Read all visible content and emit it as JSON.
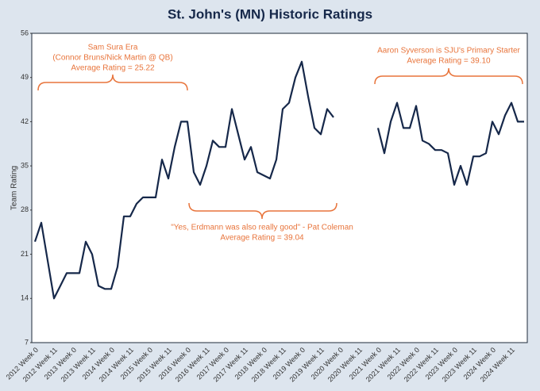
{
  "chart_data": {
    "type": "line",
    "title": "St. John's (MN) Historic Ratings",
    "y_label": "Team Rating",
    "categories": [
      "2012 Week 0",
      null,
      null,
      "2012 Week 11",
      null,
      null,
      "2013 Week 0",
      null,
      null,
      "2013 Week 11",
      null,
      null,
      "2014 Week 0",
      null,
      null,
      "2014 Week 11",
      null,
      null,
      "2015 Week 0",
      null,
      null,
      "2015 Week 11",
      null,
      null,
      "2016 Week 0",
      null,
      null,
      "2016 Week 11",
      null,
      null,
      "2017 Week 0",
      null,
      null,
      "2017 Week 11",
      null,
      null,
      "2018 Week 0",
      null,
      null,
      "2018 Week 11",
      null,
      null,
      "2019 Week 0",
      null,
      null,
      "2019 Week 11",
      null,
      null,
      "2020 Week 0",
      null,
      null,
      "2020 Week 11",
      null,
      null,
      "2021 Week 0",
      null,
      null,
      "2021 Week 11",
      null,
      null,
      "2022 Week 0",
      null,
      null,
      "2022 Week 11",
      null,
      null,
      "2023 Week 0",
      null,
      null,
      "2023 Week 11",
      null,
      null,
      "2024 Week 0",
      null,
      null,
      "2024 Week 11",
      null,
      null
    ],
    "series": [
      {
        "name": "Team Rating",
        "color": "#16284a",
        "values": [
          23,
          26,
          20,
          14,
          16,
          18,
          18,
          18,
          23,
          21,
          16,
          15.5,
          15.5,
          19,
          27,
          27,
          29,
          30,
          30,
          30,
          36,
          33,
          38,
          42,
          42,
          34,
          32,
          35,
          39,
          38,
          38,
          44,
          40,
          36,
          38,
          34,
          33.5,
          33,
          36,
          44,
          45,
          49,
          51.5,
          46,
          41,
          40,
          44,
          42.7,
          null,
          null,
          null,
          null,
          null,
          null,
          41,
          37,
          42,
          45,
          41,
          41,
          44.5,
          39,
          38.5,
          37.5,
          37.5,
          37,
          32,
          35,
          32,
          36.5,
          36.5,
          37,
          42,
          40,
          43,
          45,
          42,
          42
        ]
      }
    ],
    "ylim": [
      7,
      56
    ],
    "yticks": [
      7,
      14,
      21,
      28,
      35,
      42,
      49,
      56
    ],
    "annotations": [
      "Sam Sura Era",
      "(Connor Bruns/Nick Martin @ QB)",
      "Average Rating = 25.22",
      "Aaron Syverson is SJU's Primary Starter",
      "Average Rating = 39.10",
      "\"Yes, Erdmann was also really good\" - Pat Coleman",
      "Average Rating = 39.04"
    ],
    "annotation_color": "#e8743b"
  }
}
